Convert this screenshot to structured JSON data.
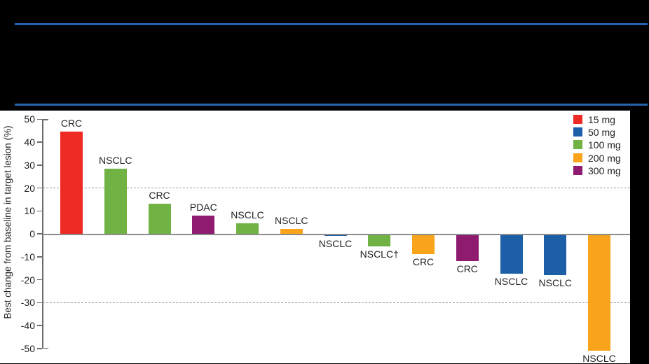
{
  "banner": {
    "background": "#000000",
    "rule_color": "#2464af"
  },
  "chart_data": {
    "type": "bar",
    "subtype": "waterfall",
    "title": "",
    "xlabel": "",
    "ylabel": "Best change from baseline in target lesion (%)",
    "ylim": [
      -50,
      50
    ],
    "yticks": [
      50,
      40,
      30,
      20,
      10,
      0,
      -10,
      -20,
      -30,
      -40,
      -50
    ],
    "ytick_labels": [
      "50",
      "40",
      "30",
      "20",
      "10",
      "0",
      "-10",
      "-20",
      "-30",
      "-40",
      "-50"
    ],
    "reference_lines": [
      20,
      -30
    ],
    "reference_line_style": "dashed",
    "grid": "off",
    "legend_position": "top-right",
    "legend_title": "",
    "doses": [
      {
        "label": "15 mg",
        "color": "#ee2a24"
      },
      {
        "label": "50 mg",
        "color": "#1c5fa8"
      },
      {
        "label": "100 mg",
        "color": "#70b344"
      },
      {
        "label": "200 mg",
        "color": "#f9a41a"
      },
      {
        "label": "300 mg",
        "color": "#8e1b70"
      }
    ],
    "bars": [
      {
        "tumor": "CRC",
        "dose": "15 mg",
        "value": 44.5
      },
      {
        "tumor": "NSCLC",
        "dose": "100 mg",
        "value": 28.5
      },
      {
        "tumor": "CRC",
        "dose": "100 mg",
        "value": 13
      },
      {
        "tumor": "PDAC",
        "dose": "300 mg",
        "value": 8
      },
      {
        "tumor": "NSCLC",
        "dose": "100 mg",
        "value": 4.5
      },
      {
        "tumor": "NSCLC",
        "dose": "200 mg",
        "value": 2
      },
      {
        "tumor": "NSCLC",
        "dose": "50 mg",
        "value": -1
      },
      {
        "tumor": "NSCLC†",
        "dose": "100 mg",
        "value": -5.5
      },
      {
        "tumor": "CRC",
        "dose": "200 mg",
        "value": -9
      },
      {
        "tumor": "CRC",
        "dose": "300 mg",
        "value": -12
      },
      {
        "tumor": "NSCLC",
        "dose": "50 mg",
        "value": -17.5
      },
      {
        "tumor": "NSCLC",
        "dose": "50 mg",
        "value": -18
      },
      {
        "tumor": "NSCLC",
        "dose": "200 mg",
        "value": -51
      }
    ]
  }
}
